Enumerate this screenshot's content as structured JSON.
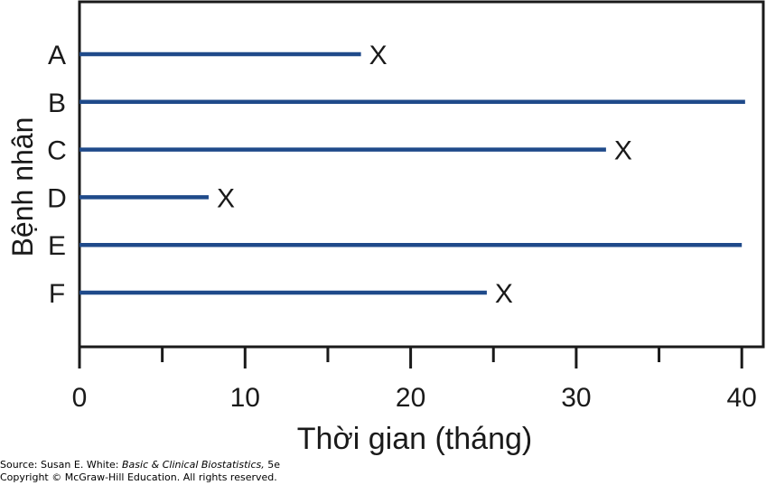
{
  "chart_data": {
    "type": "timeline",
    "ylabel": "Bệnh nhân",
    "xlabel": "Thời gian (tháng)",
    "xlim": [
      0,
      41
    ],
    "xticks_major": [
      0,
      10,
      20,
      30,
      40
    ],
    "xticks_minor": [
      5,
      15,
      25,
      35
    ],
    "categories": [
      "A",
      "B",
      "C",
      "D",
      "E",
      "F"
    ],
    "values": [
      17,
      40.2,
      31.8,
      7.8,
      40,
      24.6
    ],
    "event_marker": "X",
    "events": [
      true,
      false,
      true,
      true,
      false,
      true
    ],
    "line_color": "#1f4a8a"
  },
  "source": {
    "prefix": "Source: Susan E. White: ",
    "book": "Basic & Clinical Biostatistics,",
    "edition": " 5e",
    "copyright": "Copyright © McGraw-Hill Education. All rights reserved."
  }
}
